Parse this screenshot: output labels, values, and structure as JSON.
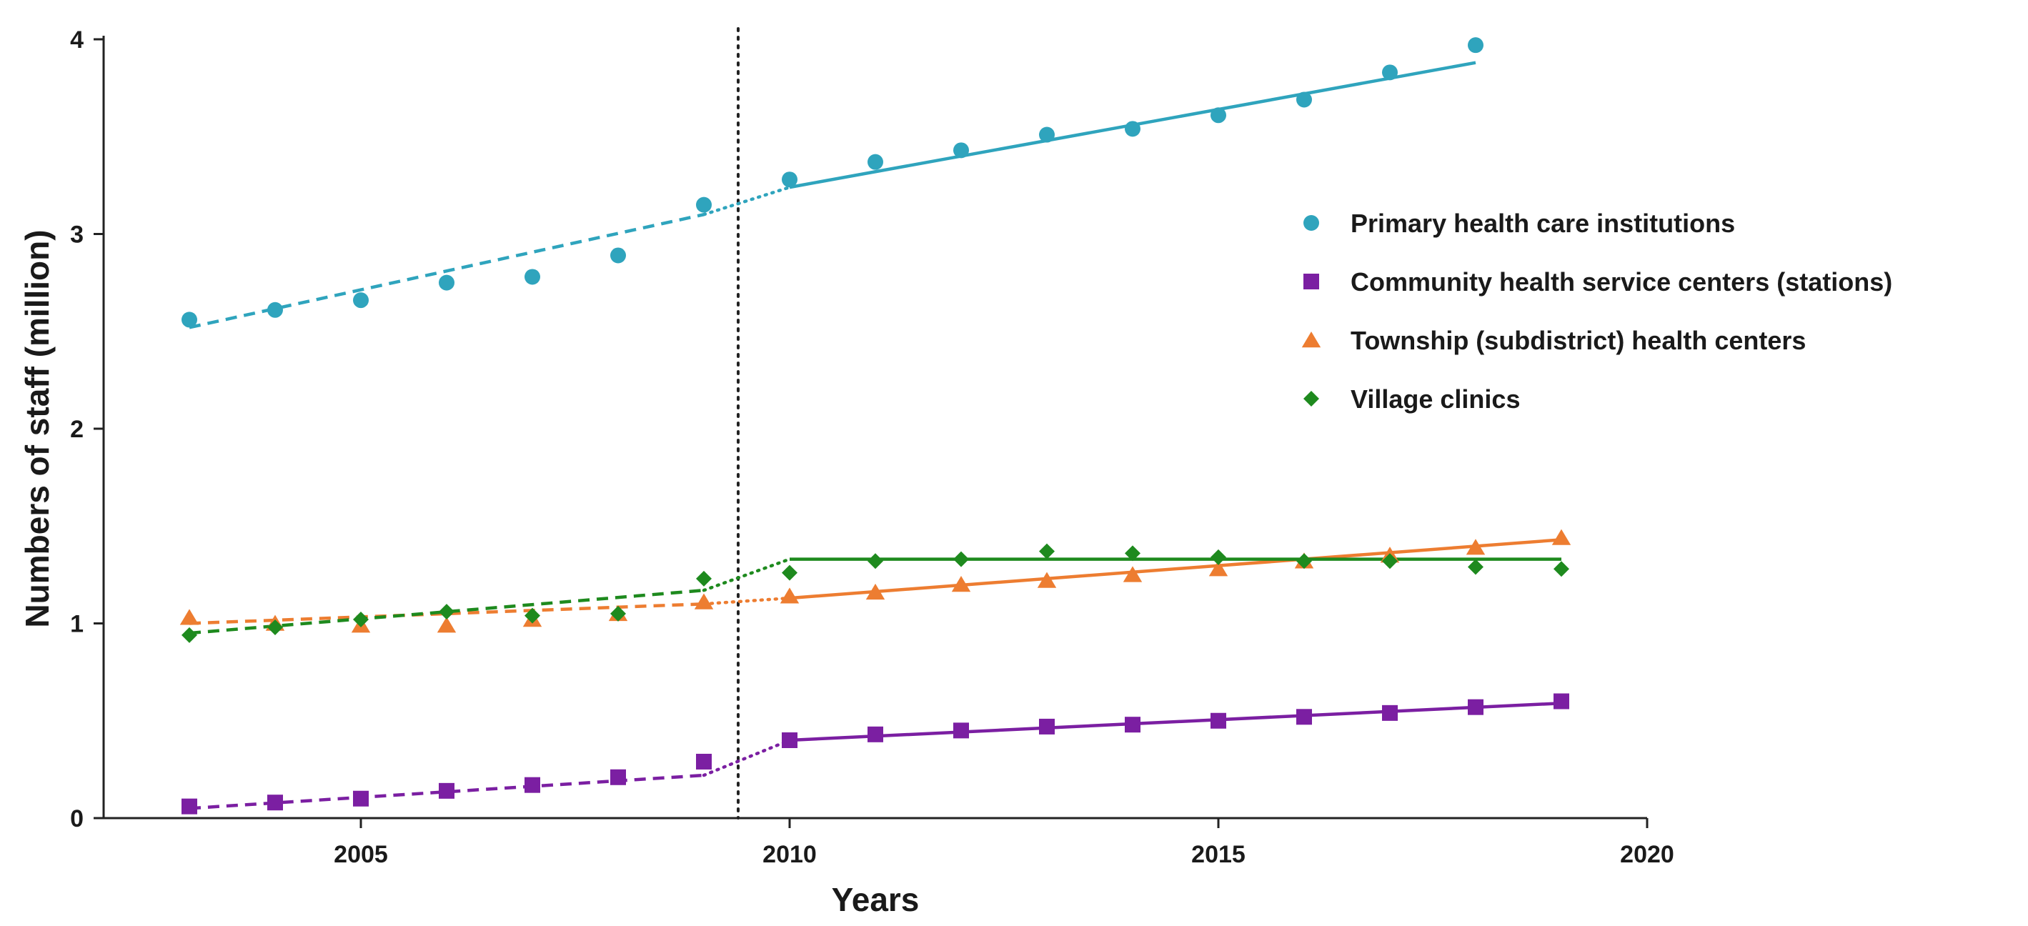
{
  "chart_data": {
    "type": "scatter",
    "title": "",
    "xlabel": "Years",
    "ylabel": "Numbers of staff (million)",
    "xlim": [
      2002,
      2020
    ],
    "ylim": [
      0,
      4
    ],
    "xticks": [
      2005,
      2010,
      2015,
      2020
    ],
    "yticks": [
      0,
      1,
      2,
      3,
      4
    ],
    "grid": false,
    "legend_position": "right",
    "intervention_year": 2009.4,
    "series": [
      {
        "name": "Primary health care institutions",
        "marker": "circle",
        "color": "#2fa4bd",
        "x": [
          2003,
          2004,
          2005,
          2006,
          2007,
          2008,
          2009,
          2010,
          2011,
          2012,
          2013,
          2014,
          2015,
          2016,
          2017,
          2018
        ],
        "y": [
          2.56,
          2.61,
          2.66,
          2.75,
          2.78,
          2.89,
          3.15,
          3.28,
          3.37,
          3.43,
          3.51,
          3.54,
          3.61,
          3.69,
          3.83,
          3.97
        ],
        "pre_fit": [
          [
            2003,
            2.52
          ],
          [
            2009,
            3.1
          ]
        ],
        "post_fit": [
          [
            2010,
            3.24
          ],
          [
            2018,
            3.88
          ]
        ]
      },
      {
        "name": "Community health service centers (stations)",
        "marker": "square",
        "color": "#7b1fa2",
        "x": [
          2003,
          2004,
          2005,
          2006,
          2007,
          2008,
          2009,
          2010,
          2011,
          2012,
          2013,
          2014,
          2015,
          2016,
          2017,
          2018,
          2019
        ],
        "y": [
          0.06,
          0.08,
          0.1,
          0.14,
          0.17,
          0.21,
          0.29,
          0.4,
          0.43,
          0.45,
          0.47,
          0.48,
          0.5,
          0.52,
          0.54,
          0.57,
          0.6
        ],
        "pre_fit": [
          [
            2003,
            0.05
          ],
          [
            2009,
            0.22
          ]
        ],
        "post_fit": [
          [
            2010,
            0.4
          ],
          [
            2019,
            0.59
          ]
        ]
      },
      {
        "name": "Township (subdistrict) health centers",
        "marker": "triangle",
        "color": "#ed7d31",
        "x": [
          2003,
          2004,
          2005,
          2006,
          2007,
          2008,
          2009,
          2010,
          2011,
          2012,
          2013,
          2014,
          2015,
          2016,
          2017,
          2018,
          2019
        ],
        "y": [
          1.03,
          1.0,
          0.99,
          0.99,
          1.02,
          1.05,
          1.11,
          1.14,
          1.16,
          1.2,
          1.22,
          1.25,
          1.28,
          1.32,
          1.35,
          1.39,
          1.44
        ],
        "pre_fit": [
          [
            2003,
            1.0
          ],
          [
            2009,
            1.1
          ]
        ],
        "post_fit": [
          [
            2010,
            1.13
          ],
          [
            2019,
            1.43
          ]
        ]
      },
      {
        "name": "Village clinics",
        "marker": "diamond",
        "color": "#1e8a1e",
        "x": [
          2003,
          2004,
          2005,
          2006,
          2007,
          2008,
          2009,
          2010,
          2011,
          2012,
          2013,
          2014,
          2015,
          2016,
          2017,
          2018,
          2019
        ],
        "y": [
          0.94,
          0.98,
          1.02,
          1.06,
          1.04,
          1.05,
          1.23,
          1.26,
          1.32,
          1.33,
          1.37,
          1.36,
          1.34,
          1.32,
          1.32,
          1.29,
          1.28
        ],
        "pre_fit": [
          [
            2003,
            0.95
          ],
          [
            2009,
            1.17
          ]
        ],
        "post_fit": [
          [
            2010,
            1.33
          ],
          [
            2019,
            1.33
          ]
        ]
      }
    ]
  }
}
